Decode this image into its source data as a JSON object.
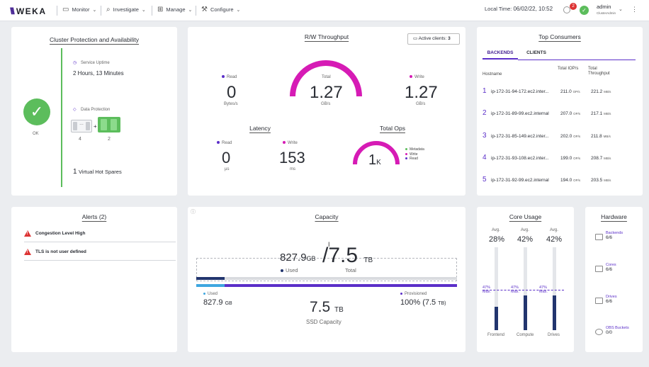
{
  "brand": {
    "logo_mark": "\\\\\\",
    "logo_text": "WEKA"
  },
  "nav": {
    "monitor": "Monitor",
    "investigate": "Investigate",
    "manage": "Manage",
    "configure": "Configure"
  },
  "header": {
    "local_time_label": "Local Time:",
    "local_time": "06/02/22, 10:52",
    "notification_count": "2",
    "user_name": "admin",
    "user_role": "ClusterAdmin"
  },
  "cluster": {
    "title": "Cluster Protection and Availability",
    "status": "OK",
    "uptime_label": "Service Uptime",
    "uptime_value": "2 Hours, 13 Minutes",
    "protection_label": "Data Protection",
    "data_drives": "4",
    "parity_drives": "2",
    "plus": "+",
    "spares_count": "1",
    "spares_label": "Virtual Hot Spares"
  },
  "throughput": {
    "title": "R/W Throughput",
    "active_clients_label": "Active clients:",
    "active_clients": "3",
    "read_label": "Read",
    "read_value": "0",
    "read_unit": "Bytes/s",
    "total_label": "Total",
    "total_value": "1.27",
    "total_unit": "GB/s",
    "write_label": "Write",
    "write_value": "1.27",
    "write_unit": "GB/s",
    "total_gauge_fraction": 1.0
  },
  "latency": {
    "title": "Latency",
    "read_label": "Read",
    "read_value": "0",
    "read_unit": "µs",
    "write_label": "Write",
    "write_value": "153",
    "write_unit": "ms"
  },
  "ops": {
    "title": "Total Ops",
    "value": "1",
    "suffix": "K",
    "legend": [
      "Metadata",
      "Write",
      "Read"
    ],
    "gauge_fraction": 0.5
  },
  "consumers": {
    "title": "Top Consumers",
    "tabs": [
      "BACKENDS",
      "CLIENTS"
    ],
    "col_host": "Hostname",
    "col_iops": "Total IOP/s",
    "col_throughput": "Total Throughput",
    "rows": [
      {
        "rank": "1",
        "host": "ip-172-31-94-172.ec2.inter...",
        "iops": "211.0",
        "iops_unit": "OP/s",
        "tp": "221.2",
        "tp_unit": "MB/s"
      },
      {
        "rank": "2",
        "host": "ip-172-31-89-99.ec2.internal",
        "iops": "207.0",
        "iops_unit": "OP/s",
        "tp": "217.1",
        "tp_unit": "MB/s"
      },
      {
        "rank": "3",
        "host": "ip-172-31-85-149.ec2.inter...",
        "iops": "202.0",
        "iops_unit": "OP/s",
        "tp": "211.8",
        "tp_unit": "MB/s"
      },
      {
        "rank": "4",
        "host": "ip-172-31-93-108.ec2.inter...",
        "iops": "199.0",
        "iops_unit": "OP/s",
        "tp": "208.7",
        "tp_unit": "MB/s"
      },
      {
        "rank": "5",
        "host": "ip-172-31-92-99.ec2.internal",
        "iops": "194.0",
        "iops_unit": "OP/s",
        "tp": "203.5",
        "tp_unit": "MB/s"
      }
    ]
  },
  "alerts": {
    "title": "Alerts (2)",
    "items": [
      "Congestion Level High",
      "TLS is not user defined"
    ]
  },
  "capacity": {
    "title": "Capacity",
    "used_value": "827.9",
    "used_unit": "GB",
    "total_value": "7.5",
    "total_unit": "TB",
    "used_label": "Used",
    "total_label": "Total",
    "bar_used_fraction": 0.11,
    "ssd_used_label": "Used",
    "ssd_used_value": "827.9",
    "ssd_used_unit": "GB",
    "ssd_value": "7.5",
    "ssd_unit": "TB",
    "ssd_label": "SSD Capacity",
    "provisioned_label": "Provisioned",
    "provisioned_value": "100% (7.5",
    "provisioned_unit": "TB)",
    "ssd_used_fraction": 0.11,
    "ssd_provisioned_fraction": 1.0
  },
  "core_usage": {
    "title": "Core Usage",
    "avg_label": "Avg.",
    "max_label": "Max.",
    "columns": [
      {
        "name": "Frontend",
        "avg": "28%",
        "max": "47%",
        "fill": 0.28
      },
      {
        "name": "Compute",
        "avg": "42%",
        "max": "47%",
        "fill": 0.42
      },
      {
        "name": "Drives",
        "avg": "42%",
        "max": "47%",
        "fill": 0.42
      }
    ]
  },
  "hardware": {
    "title": "Hardware",
    "items": [
      {
        "name": "Backends",
        "value": "6/6"
      },
      {
        "name": "Cores",
        "value": "6/6"
      },
      {
        "name": "Drives",
        "value": "6/6"
      },
      {
        "name": "OBS Buckets",
        "value": "0/0"
      }
    ]
  },
  "colors": {
    "accent": "#5b2fc9",
    "magenta": "#d61bb5",
    "ok_green": "#5cbd5c",
    "navy": "#22356e",
    "light_blue": "#3fa7e0",
    "alert_red": "#d33333"
  }
}
